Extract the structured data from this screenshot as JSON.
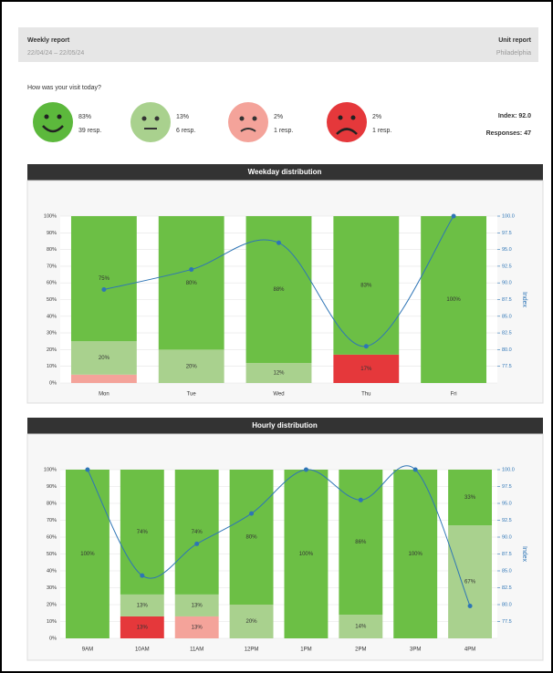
{
  "header": {
    "title": "Weekly report",
    "dates": "22/04/24 – 22/05/24",
    "unit_title": "Unit report",
    "unit": "Philadelphia"
  },
  "survey": {
    "question": "How was your visit today?",
    "options": [
      {
        "percent": "83%",
        "responses": "39 resp."
      },
      {
        "percent": "13%",
        "responses": "6 resp."
      },
      {
        "percent": "2%",
        "responses": "1 resp."
      },
      {
        "percent": "2%",
        "responses": "1 resp."
      }
    ],
    "index": "Index: 92.0",
    "responses": "Responses: 47"
  },
  "chart_data": [
    {
      "type": "bar",
      "stacked": true,
      "grid": true,
      "title": "Weekday distribution",
      "categories": [
        "Mon",
        "Tue",
        "Wed",
        "Thu",
        "Fri"
      ],
      "series": [
        {
          "color": "#e5383b",
          "values": [
            0,
            0,
            0,
            17,
            0
          ],
          "value_labels": [
            null,
            null,
            null,
            "17%",
            null
          ]
        },
        {
          "color": "#f4a39a",
          "values": [
            5,
            0,
            0,
            0,
            0
          ],
          "value_labels": [
            null,
            null,
            null,
            null,
            null
          ]
        },
        {
          "color": "#a9d18e",
          "values": [
            20,
            20,
            12,
            0,
            0
          ],
          "value_labels": [
            "20%",
            "20%",
            "12%",
            null,
            null
          ]
        },
        {
          "color": "#6cbf45",
          "values": [
            75,
            80,
            88,
            83,
            100
          ],
          "value_labels": [
            "75%",
            "80%",
            "88%",
            "83%",
            "100%"
          ]
        },
        {
          "type": "line",
          "axis": "y2",
          "color": "#2e75b6",
          "values": [
            89,
            92,
            96,
            80.5,
            100
          ]
        }
      ],
      "ylim": [
        0,
        100
      ],
      "yticks": [
        {
          "value": 0,
          "label": "0%"
        },
        {
          "value": 10,
          "label": "10%"
        },
        {
          "value": 20,
          "label": "20%"
        },
        {
          "value": 30,
          "label": "30%"
        },
        {
          "value": 40,
          "label": "40%"
        },
        {
          "value": 50,
          "label": "50%"
        },
        {
          "value": 60,
          "label": "60%"
        },
        {
          "value": 70,
          "label": "70%"
        },
        {
          "value": 80,
          "label": "80%"
        },
        {
          "value": 90,
          "label": "90%"
        },
        {
          "value": 100,
          "label": "100%"
        }
      ],
      "y2lim": [
        75,
        100
      ],
      "y2ticks": [
        {
          "value": 77.5,
          "label": "77.5"
        },
        {
          "value": 80,
          "label": "80.0"
        },
        {
          "value": 82.5,
          "label": "82.5"
        },
        {
          "value": 85,
          "label": "85.0"
        },
        {
          "value": 87.5,
          "label": "87.5"
        },
        {
          "value": 90,
          "label": "90.0"
        },
        {
          "value": 92.5,
          "label": "92.5"
        },
        {
          "value": 95,
          "label": "95.0"
        },
        {
          "value": 97.5,
          "label": "97.5"
        },
        {
          "value": 100,
          "label": "100.0"
        }
      ],
      "y2label": "Index"
    },
    {
      "type": "bar",
      "stacked": true,
      "grid": true,
      "title": "Hourly distribution",
      "categories": [
        "9AM",
        "10AM",
        "11AM",
        "12PM",
        "1PM",
        "2PM",
        "3PM",
        "4PM"
      ],
      "series": [
        {
          "color": "#e5383b",
          "values": [
            0,
            13,
            0,
            0,
            0,
            0,
            0,
            0
          ],
          "value_labels": [
            null,
            "13%",
            null,
            null,
            null,
            null,
            null,
            null
          ]
        },
        {
          "color": "#f4a39a",
          "values": [
            0,
            0,
            13,
            0,
            0,
            0,
            0,
            0
          ],
          "value_labels": [
            null,
            null,
            "13%",
            null,
            null,
            null,
            null,
            null
          ]
        },
        {
          "color": "#a9d18e",
          "values": [
            0,
            13,
            13,
            20,
            0,
            14,
            0,
            67
          ],
          "value_labels": [
            null,
            "13%",
            "13%",
            "20%",
            null,
            "14%",
            null,
            "67%"
          ]
        },
        {
          "color": "#6cbf45",
          "values": [
            100,
            74,
            74,
            80,
            100,
            86,
            100,
            33
          ],
          "value_labels": [
            "100%",
            "74%",
            "74%",
            "80%",
            "100%",
            "86%",
            "100%",
            "33%"
          ]
        },
        {
          "type": "line",
          "axis": "y2",
          "color": "#2e75b6",
          "values": [
            100,
            84.3,
            89,
            93.5,
            100,
            95.5,
            100,
            79.8
          ]
        }
      ],
      "ylim": [
        0,
        100
      ],
      "yticks": [
        {
          "value": 0,
          "label": "0%"
        },
        {
          "value": 10,
          "label": "10%"
        },
        {
          "value": 20,
          "label": "20%"
        },
        {
          "value": 30,
          "label": "30%"
        },
        {
          "value": 40,
          "label": "40%"
        },
        {
          "value": 50,
          "label": "50%"
        },
        {
          "value": 60,
          "label": "60%"
        },
        {
          "value": 70,
          "label": "70%"
        },
        {
          "value": 80,
          "label": "80%"
        },
        {
          "value": 90,
          "label": "90%"
        },
        {
          "value": 100,
          "label": "100%"
        }
      ],
      "y2lim": [
        75,
        100
      ],
      "y2ticks": [
        {
          "value": 77.5,
          "label": "77.5"
        },
        {
          "value": 80,
          "label": "80.0"
        },
        {
          "value": 82.5,
          "label": "82.5"
        },
        {
          "value": 85,
          "label": "85.0"
        },
        {
          "value": 87.5,
          "label": "87.5"
        },
        {
          "value": 90,
          "label": "90.0"
        },
        {
          "value": 92.5,
          "label": "92.5"
        },
        {
          "value": 95,
          "label": "95.0"
        },
        {
          "value": 97.5,
          "label": "97.5"
        },
        {
          "value": 100,
          "label": "100.0"
        }
      ],
      "y2label": "Index"
    }
  ]
}
